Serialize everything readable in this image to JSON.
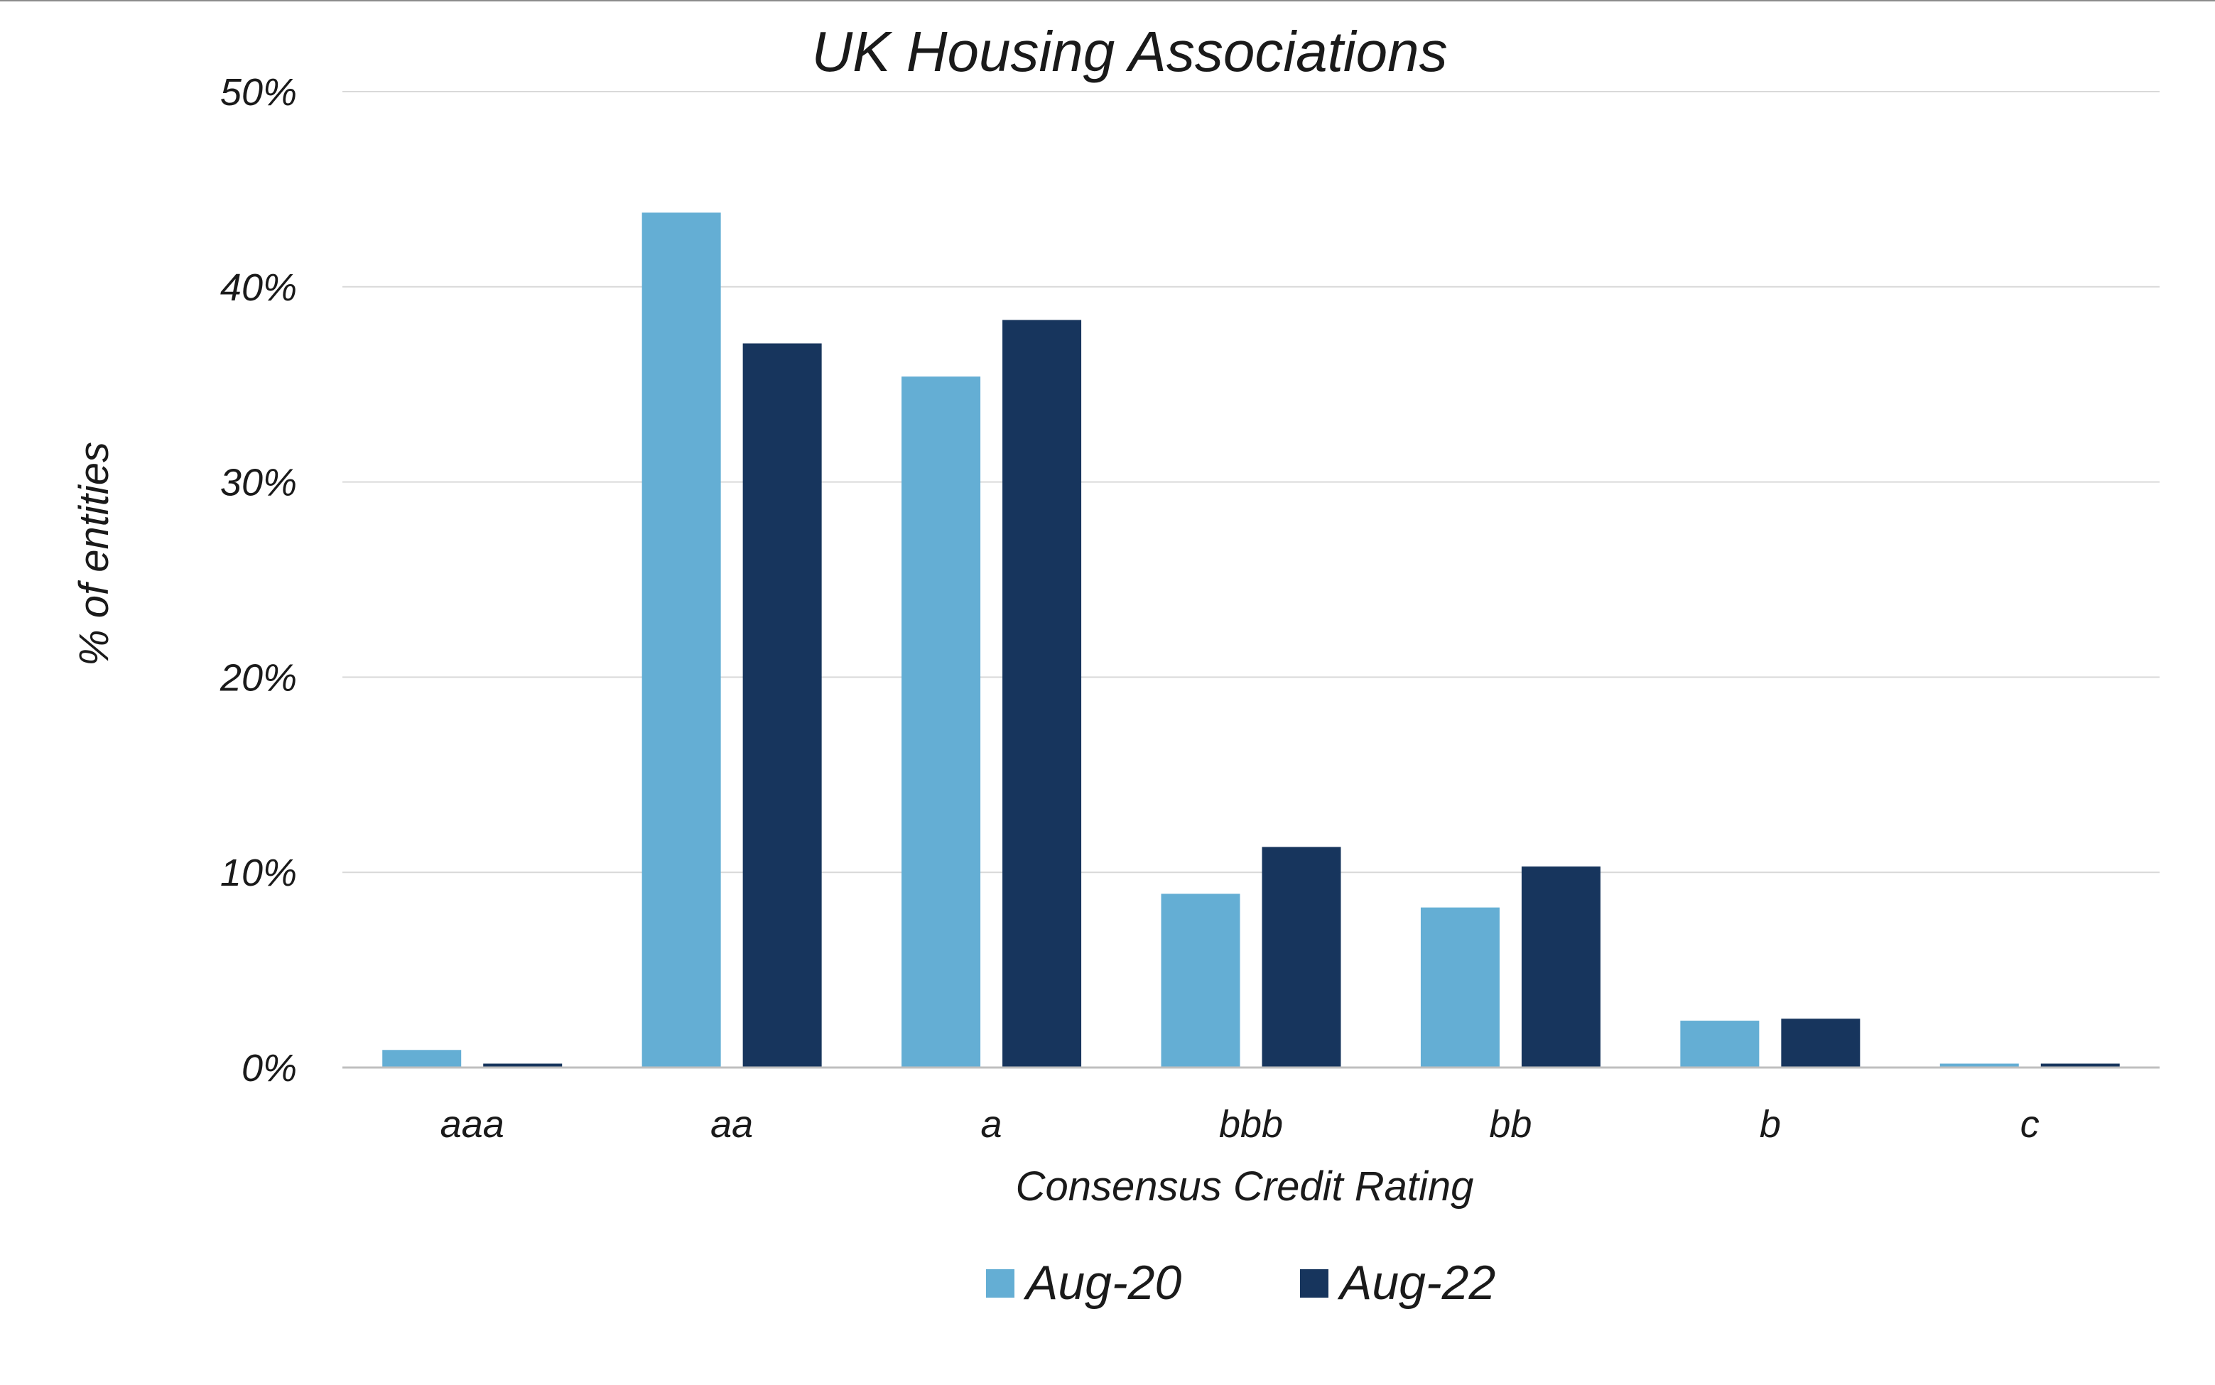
{
  "chart_data": {
    "type": "bar",
    "title": "UK Housing Associations",
    "xlabel": "Consensus Credit Rating",
    "ylabel": "% of entities",
    "categories": [
      "aaa",
      "aa",
      "a",
      "bbb",
      "bb",
      "b",
      "c"
    ],
    "series": [
      {
        "name": "Aug-20",
        "color": "#64aed4",
        "values": [
          0.9,
          43.8,
          35.4,
          8.9,
          8.2,
          2.4,
          0.2
        ]
      },
      {
        "name": "Aug-22",
        "color": "#17355d",
        "values": [
          0.2,
          37.1,
          38.3,
          11.3,
          10.3,
          2.5,
          0.2
        ]
      }
    ],
    "ylim": [
      0,
      50
    ],
    "yticks": [
      "0%",
      "10%",
      "20%",
      "30%",
      "40%",
      "50%"
    ],
    "ytick_values": [
      0,
      10,
      20,
      30,
      40,
      50
    ],
    "grid": true,
    "legend_position": "bottom-center"
  }
}
